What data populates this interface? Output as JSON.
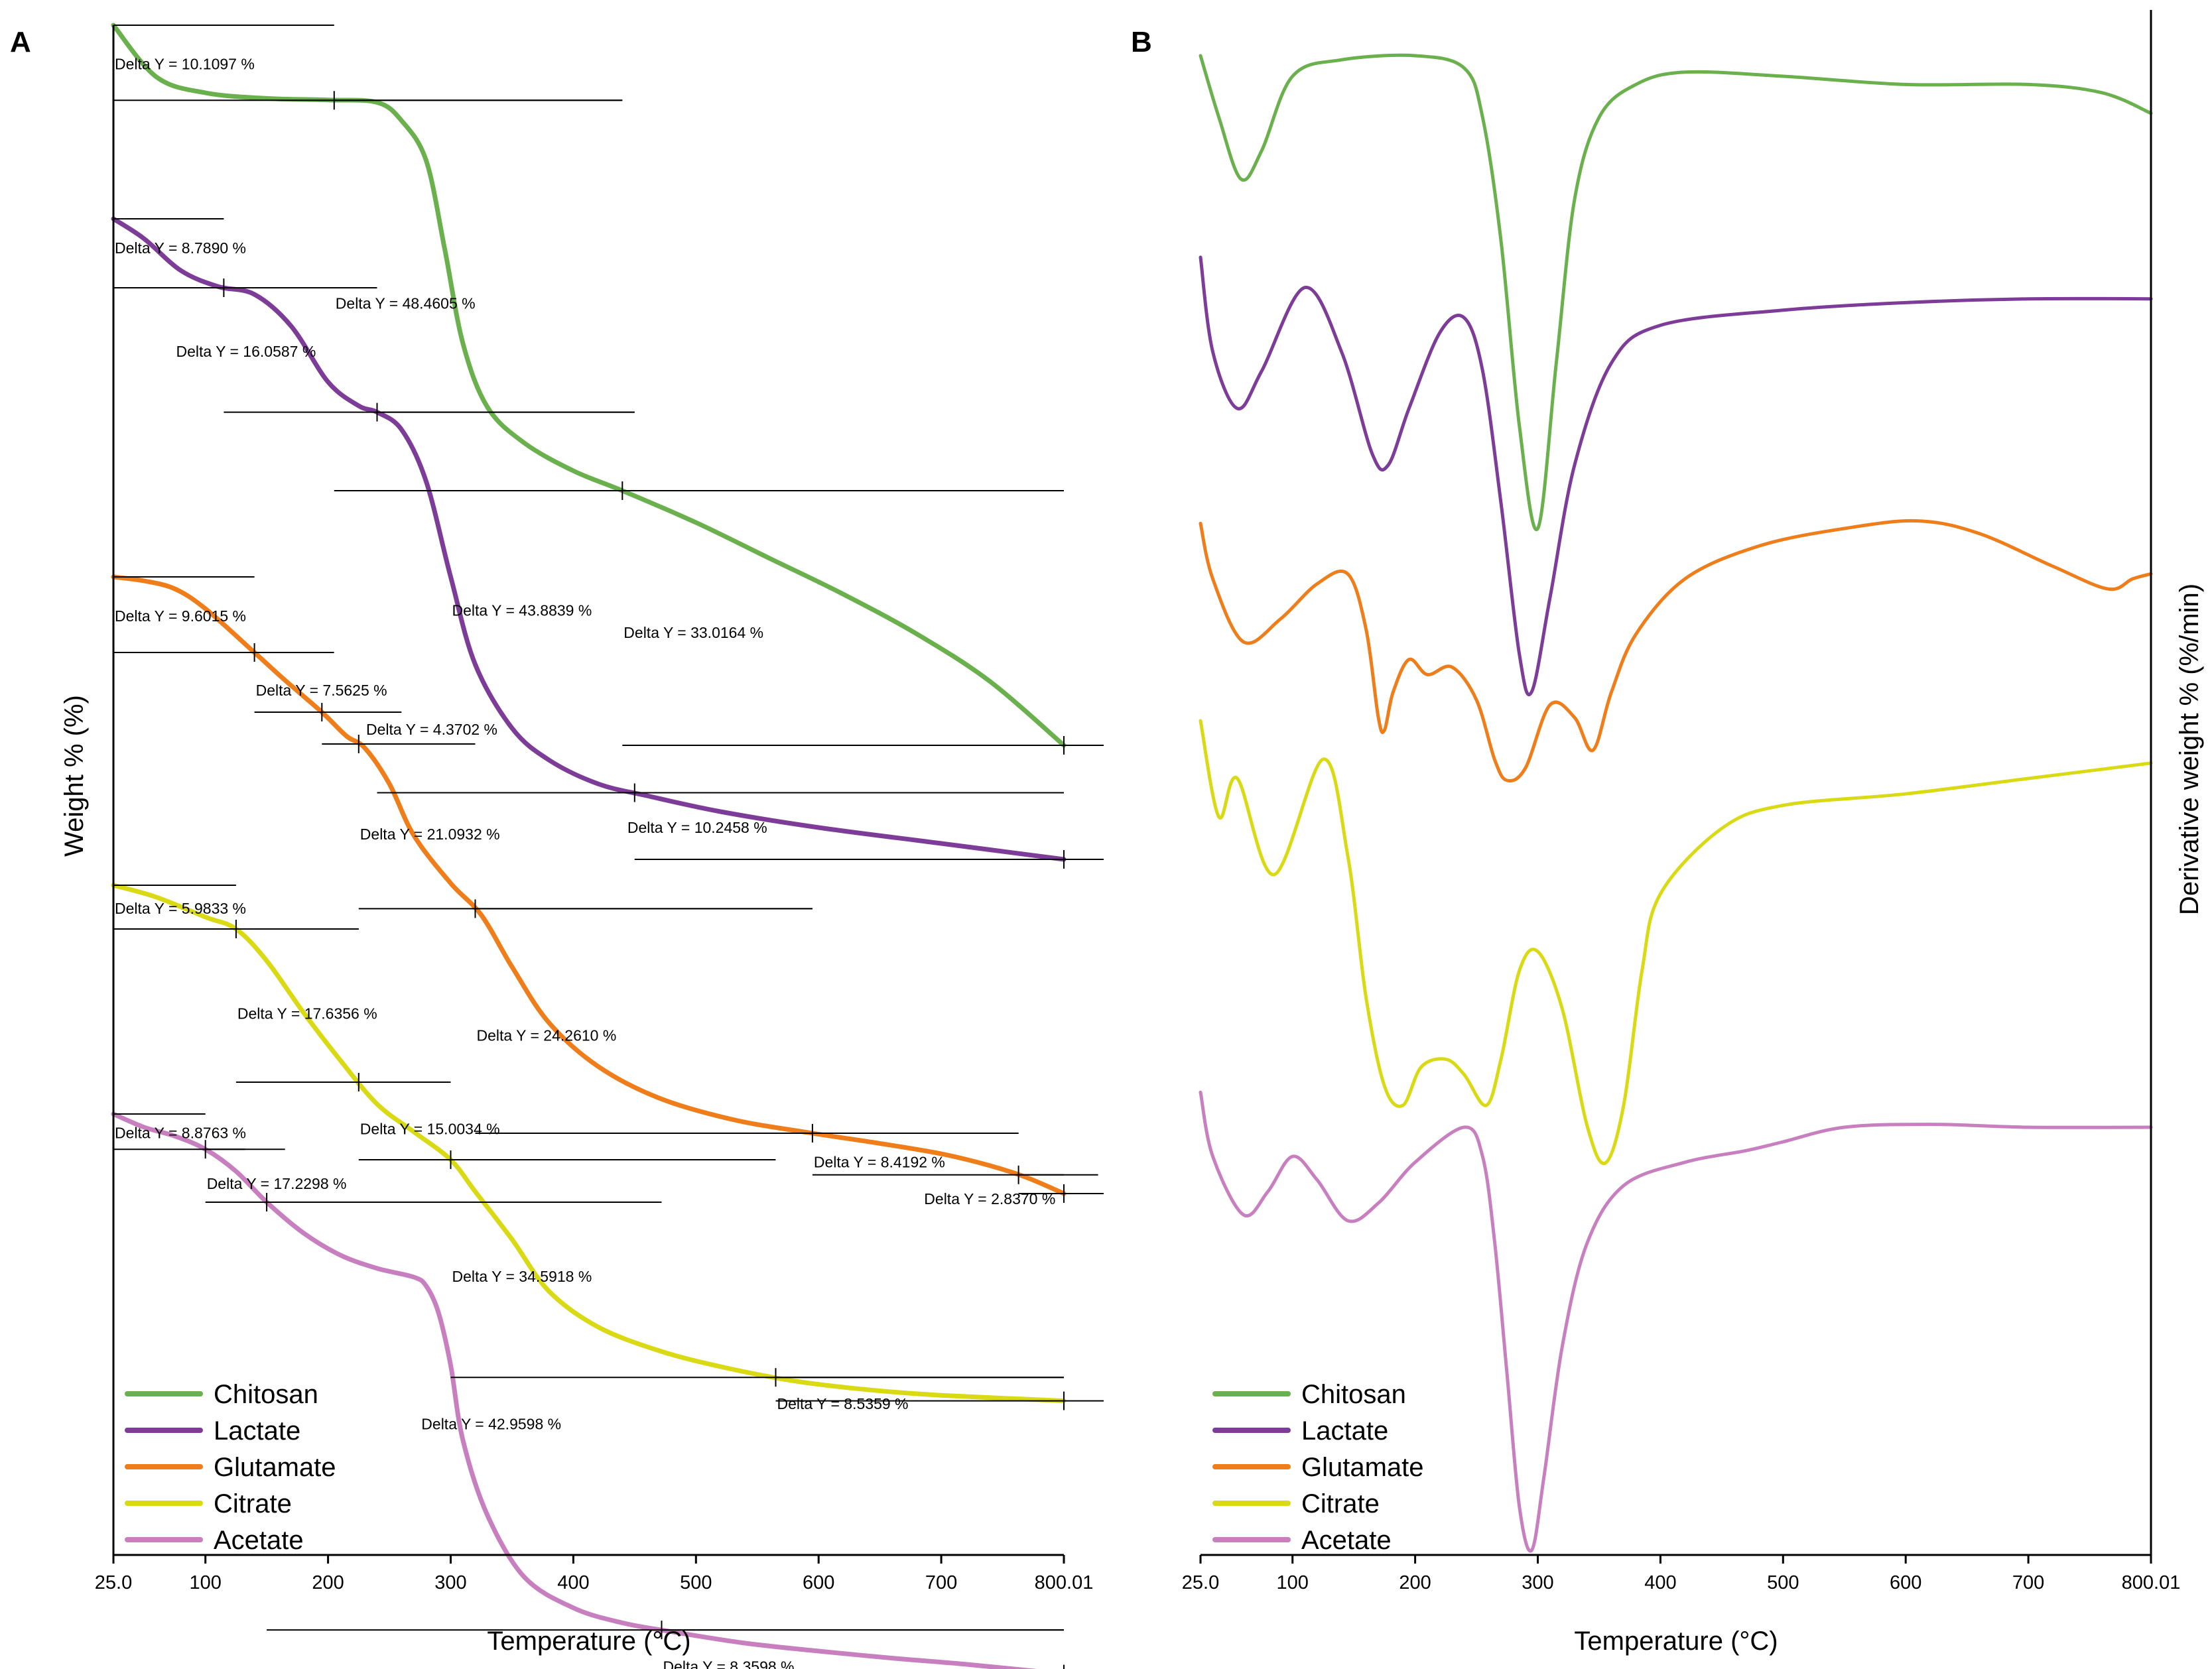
{
  "chart_data": [
    {
      "panel": "A",
      "type": "line",
      "title": "",
      "xlabel": "Temperature (°C)",
      "ylabel": "Weight % (%)",
      "xlim": [
        25.0,
        800.01
      ],
      "x_ticks": [
        "25.0",
        "100",
        "200",
        "300",
        "400",
        "500",
        "600",
        "700",
        "800.01"
      ],
      "x_tick_values": [
        25.0,
        100,
        200,
        300,
        400,
        500,
        600,
        700,
        800.01
      ],
      "legend": [
        "Chitosan",
        "Lactate",
        "Glutamate",
        "Citrate",
        "Acetate"
      ],
      "legend_position": "bottom-left",
      "series": [
        {
          "name": "Chitosan",
          "color": "#6ab04c",
          "x": [
            25,
            60,
            100,
            150,
            200,
            240,
            260,
            280,
            295,
            310,
            330,
            360,
            400,
            440,
            500,
            560,
            620,
            680,
            740,
            800
          ],
          "y": [
            100,
            93.5,
            91.5,
            90.8,
            90.6,
            90.3,
            88,
            83,
            72,
            60,
            52,
            47.5,
            44,
            41.5,
            37.5,
            33,
            28.5,
            23.5,
            17.5,
            9.5
          ]
        },
        {
          "name": "Lactate",
          "color": "#7d3c98",
          "x": [
            25,
            50,
            80,
            110,
            140,
            170,
            200,
            225,
            240,
            260,
            280,
            300,
            320,
            350,
            380,
            420,
            460,
            520,
            600,
            700,
            800
          ],
          "y": [
            100,
            97.5,
            93.5,
            91.5,
            90.5,
            86.5,
            79.5,
            76.5,
            75.7,
            73.5,
            67,
            55,
            44,
            36,
            32,
            29,
            27.5,
            25.5,
            23.5,
            21.5,
            19.5
          ]
        },
        {
          "name": "Glutamate",
          "color": "#ee7d1a",
          "x": [
            25,
            50,
            75,
            100,
            140,
            165,
            195,
            215,
            230,
            250,
            270,
            300,
            325,
            350,
            380,
            420,
            470,
            530,
            590,
            650,
            700,
            740,
            770,
            800
          ],
          "y": [
            100,
            99.5,
            98.5,
            96,
            90.5,
            87,
            83,
            80,
            78.5,
            74,
            67.5,
            61.5,
            57.5,
            51,
            44,
            38.5,
            34.5,
            31.8,
            30.2,
            28.8,
            27.5,
            26,
            24.5,
            22.5
          ]
        },
        {
          "name": "Citrate",
          "color": "#d9d914",
          "x": [
            25,
            60,
            100,
            125,
            150,
            180,
            210,
            240,
            270,
            300,
            320,
            350,
            380,
            420,
            470,
            520,
            580,
            640,
            700,
            800
          ],
          "y": [
            100,
            98.5,
            96,
            94.5,
            90.5,
            84,
            78,
            72.5,
            69,
            65.5,
            61.5,
            55.5,
            49,
            44.5,
            41.5,
            39.5,
            37.7,
            36.6,
            35.9,
            35.2
          ]
        },
        {
          "name": "Acetate",
          "color": "#c77fbf",
          "x": [
            25,
            50,
            75,
            100,
            125,
            150,
            180,
            210,
            240,
            270,
            280,
            290,
            300,
            310,
            330,
            360,
            400,
            440,
            480,
            540,
            600,
            660,
            720,
            800
          ],
          "y": [
            100,
            98.5,
            97.5,
            96,
            93.5,
            90,
            86.5,
            84,
            82.5,
            81.5,
            80.5,
            77.5,
            71.5,
            63,
            54.5,
            47.5,
            44,
            42.3,
            41.3,
            40,
            39.1,
            38.3,
            37.6,
            36.5
          ]
        }
      ],
      "annotations": [
        "Delta Y = 10.1097 %",
        "Delta Y = 48.4605 %",
        "Delta Y = 33.0164 %",
        "Delta Y = 8.7890 %",
        "Delta Y = 16.0587 %",
        "Delta Y = 43.8839 %",
        "Delta Y = 10.2458 %",
        "Delta Y = 9.6015 %",
        "Delta Y = 7.5625 %",
        "Delta Y = 4.3702 %",
        "Delta Y = 21.0932 %",
        "Delta Y = 24.2610 %",
        "Delta Y = 8.4192 %",
        "Delta Y = 2.8370 %",
        "Delta Y = 5.9833 %",
        "Delta Y = 17.6356 %",
        "Delta Y = 15.0034 %",
        "Delta Y = 34.5918 %",
        "Delta Y = 8.5359 %",
        "Delta Y = 8.8763 %",
        "Delta Y = 17.2298 %",
        "Delta Y = 42.9598 %",
        "Delta Y = 8.3598 %"
      ]
    },
    {
      "panel": "B",
      "type": "line",
      "title": "",
      "xlabel": "Temperature (°C)",
      "ylabel": "Derivative weight % (%/min)",
      "xlim": [
        25.0,
        800.01
      ],
      "x_ticks": [
        "25.0",
        "100",
        "200",
        "300",
        "400",
        "500",
        "600",
        "700",
        "800.01"
      ],
      "x_tick_values": [
        25.0,
        100,
        200,
        300,
        400,
        500,
        600,
        700,
        800.01
      ],
      "legend": [
        "Chitosan",
        "Lactate",
        "Glutamate",
        "Citrate",
        "Acetate"
      ],
      "legend_position": "bottom-left",
      "series": [
        {
          "name": "Chitosan",
          "color": "#6ab04c",
          "x": [
            25,
            40,
            58,
            75,
            100,
            140,
            200,
            240,
            255,
            270,
            285,
            300,
            315,
            330,
            350,
            380,
            420,
            500,
            600,
            700,
            760,
            800
          ],
          "y": [
            0.05,
            -0.1,
            -0.25,
            -0.18,
            0.0,
            0.04,
            0.05,
            0.02,
            -0.1,
            -0.4,
            -0.85,
            -1.1,
            -0.7,
            -0.3,
            -0.1,
            -0.02,
            0.01,
            0.0,
            -0.02,
            -0.02,
            -0.04,
            -0.09
          ]
        },
        {
          "name": "Lactate",
          "color": "#7d3c98",
          "x": [
            25,
            35,
            55,
            75,
            110,
            140,
            165,
            178,
            195,
            220,
            240,
            255,
            270,
            285,
            295,
            310,
            330,
            360,
            400,
            500,
            600,
            700,
            800
          ],
          "y": [
            0.1,
            -0.15,
            -0.3,
            -0.2,
            0.02,
            -0.15,
            -0.42,
            -0.45,
            -0.3,
            -0.1,
            -0.06,
            -0.2,
            -0.55,
            -0.95,
            -1.05,
            -0.8,
            -0.45,
            -0.18,
            -0.08,
            -0.04,
            -0.02,
            -0.01,
            -0.01
          ]
        },
        {
          "name": "Glutamate",
          "color": "#ee7d1a",
          "x": [
            25,
            35,
            60,
            90,
            120,
            145,
            160,
            170,
            175,
            182,
            195,
            210,
            230,
            250,
            265,
            275,
            290,
            310,
            330,
            345,
            360,
            380,
            420,
            480,
            550,
            610,
            660,
            720,
            765,
            785,
            800
          ],
          "y": [
            0.12,
            -0.1,
            -0.35,
            -0.26,
            -0.12,
            -0.08,
            -0.3,
            -0.65,
            -0.7,
            -0.55,
            -0.42,
            -0.48,
            -0.45,
            -0.58,
            -0.82,
            -0.9,
            -0.85,
            -0.6,
            -0.65,
            -0.78,
            -0.55,
            -0.32,
            -0.1,
            0.03,
            0.1,
            0.13,
            0.08,
            -0.05,
            -0.14,
            -0.1,
            -0.08
          ]
        },
        {
          "name": "Citrate",
          "color": "#d9d914",
          "x": [
            25,
            40,
            55,
            85,
            125,
            145,
            160,
            175,
            190,
            205,
            225,
            240,
            258,
            270,
            285,
            300,
            320,
            340,
            355,
            370,
            385,
            400,
            450,
            500,
            600,
            700,
            800
          ],
          "y": [
            0.1,
            -0.15,
            -0.05,
            -0.3,
            0.0,
            -0.25,
            -0.62,
            -0.85,
            -0.9,
            -0.8,
            -0.78,
            -0.82,
            -0.9,
            -0.78,
            -0.55,
            -0.5,
            -0.65,
            -0.95,
            -1.05,
            -0.9,
            -0.55,
            -0.35,
            -0.18,
            -0.12,
            -0.09,
            -0.05,
            -0.01
          ]
        },
        {
          "name": "Acetate",
          "color": "#c77fbf",
          "x": [
            25,
            35,
            60,
            80,
            100,
            120,
            145,
            170,
            200,
            240,
            255,
            265,
            275,
            285,
            295,
            305,
            320,
            340,
            370,
            420,
            470,
            500,
            550,
            620,
            700,
            800
          ],
          "y": [
            0.12,
            -0.1,
            -0.3,
            -0.22,
            -0.1,
            -0.18,
            -0.32,
            -0.26,
            -0.12,
            0.0,
            -0.1,
            -0.4,
            -0.85,
            -1.3,
            -1.45,
            -1.2,
            -0.75,
            -0.4,
            -0.2,
            -0.12,
            -0.08,
            -0.05,
            0.0,
            0.01,
            0.0,
            0.0
          ]
        }
      ]
    }
  ],
  "panel_a": {
    "letter": "A",
    "xlabel": "Temperature (°C)",
    "ylabel": "Weight % (%)"
  },
  "panel_b": {
    "letter": "B",
    "xlabel": "Temperature (°C)",
    "ylabel": "Derivative weight % (%/min)"
  }
}
